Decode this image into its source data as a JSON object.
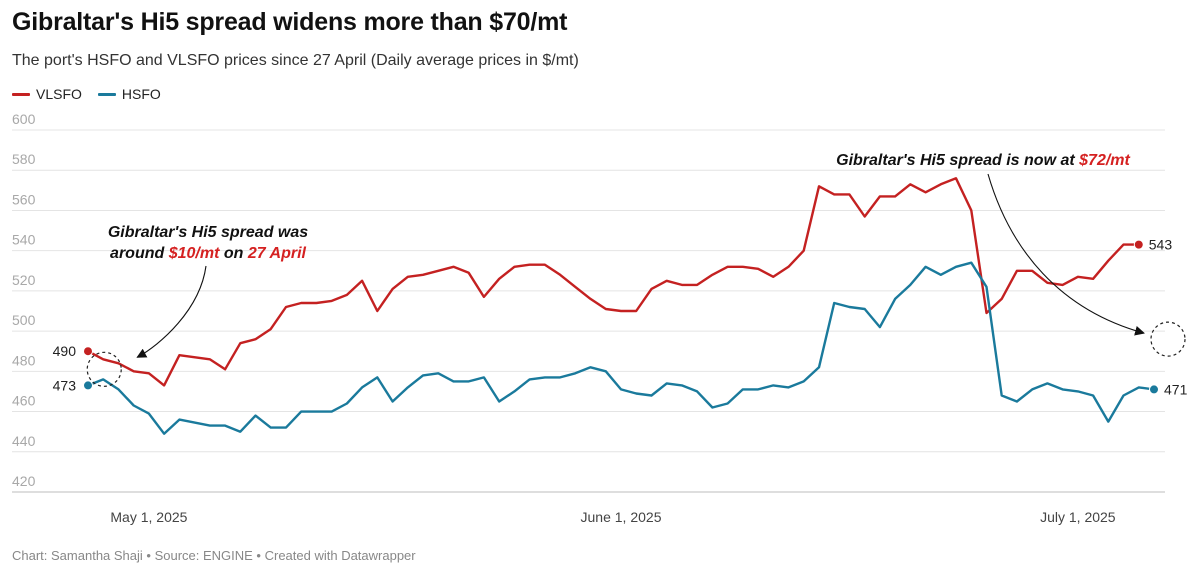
{
  "title": "Gibraltar's Hi5 spread widens more than $70/mt",
  "subtitle": "The port's HSFO and VLSFO prices since 27 April (Daily average prices in $/mt)",
  "footer": "Chart: Samantha Shaji • Source: ENGINE • Created with Datawrapper",
  "colors": {
    "vlsfo": "#c42121",
    "hsfo": "#1a7a9c",
    "grid": "#e4e4e4",
    "tick": "#a8a8a8",
    "highlight": "#d52121"
  },
  "chart_data": {
    "type": "line",
    "title": "Gibraltar's Hi5 spread widens more than $70/mt",
    "subtitle": "The port's HSFO and VLSFO prices since 27 April (Daily average prices in $/mt)",
    "ylim": [
      420,
      600
    ],
    "yticks": [
      "600",
      "580",
      "560",
      "540",
      "520",
      "500",
      "480",
      "460",
      "440",
      "420"
    ],
    "xticks": [
      {
        "label": "May 1, 2025",
        "date": "2025-05-01"
      },
      {
        "label": "June 1, 2025",
        "date": "2025-06-01"
      },
      {
        "label": "July 1, 2025",
        "date": "2025-07-01"
      }
    ],
    "legend_position": "top-left",
    "grid": true,
    "series": [
      {
        "name": "VLSFO",
        "points": [
          [
            "2025-04-27",
            490
          ],
          [
            "2025-04-28",
            486
          ],
          [
            "2025-04-29",
            484
          ],
          [
            "2025-04-30",
            480
          ],
          [
            "2025-05-01",
            479
          ],
          [
            "2025-05-02",
            473
          ],
          [
            "2025-05-03",
            488
          ],
          [
            "2025-05-05",
            486
          ],
          [
            "2025-05-06",
            481
          ],
          [
            "2025-05-07",
            494
          ],
          [
            "2025-05-08",
            496
          ],
          [
            "2025-05-09",
            501
          ],
          [
            "2025-05-10",
            512
          ],
          [
            "2025-05-11",
            514
          ],
          [
            "2025-05-12",
            514
          ],
          [
            "2025-05-13",
            515
          ],
          [
            "2025-05-14",
            518
          ],
          [
            "2025-05-15",
            525
          ],
          [
            "2025-05-16",
            510
          ],
          [
            "2025-05-17",
            521
          ],
          [
            "2025-05-18",
            527
          ],
          [
            "2025-05-19",
            528
          ],
          [
            "2025-05-20",
            530
          ],
          [
            "2025-05-21",
            532
          ],
          [
            "2025-05-22",
            529
          ],
          [
            "2025-05-23",
            517
          ],
          [
            "2025-05-24",
            526
          ],
          [
            "2025-05-25",
            532
          ],
          [
            "2025-05-26",
            533
          ],
          [
            "2025-05-27",
            533
          ],
          [
            "2025-05-28",
            528
          ],
          [
            "2025-05-29",
            522
          ],
          [
            "2025-05-30",
            516
          ],
          [
            "2025-05-31",
            511
          ],
          [
            "2025-06-01",
            510
          ],
          [
            "2025-06-02",
            510
          ],
          [
            "2025-06-03",
            521
          ],
          [
            "2025-06-04",
            525
          ],
          [
            "2025-06-05",
            523
          ],
          [
            "2025-06-06",
            523
          ],
          [
            "2025-06-07",
            528
          ],
          [
            "2025-06-08",
            532
          ],
          [
            "2025-06-09",
            532
          ],
          [
            "2025-06-10",
            531
          ],
          [
            "2025-06-11",
            527
          ],
          [
            "2025-06-12",
            532
          ],
          [
            "2025-06-13",
            540
          ],
          [
            "2025-06-14",
            572
          ],
          [
            "2025-06-15",
            568
          ],
          [
            "2025-06-16",
            568
          ],
          [
            "2025-06-17",
            557
          ],
          [
            "2025-06-18",
            567
          ],
          [
            "2025-06-19",
            567
          ],
          [
            "2025-06-20",
            573
          ],
          [
            "2025-06-21",
            569
          ],
          [
            "2025-06-22",
            573
          ],
          [
            "2025-06-23",
            576
          ],
          [
            "2025-06-24",
            560
          ],
          [
            "2025-06-25",
            509
          ],
          [
            "2025-06-26",
            516
          ],
          [
            "2025-06-27",
            530
          ],
          [
            "2025-06-28",
            530
          ],
          [
            "2025-06-29",
            524
          ],
          [
            "2025-06-30",
            523
          ],
          [
            "2025-07-01",
            527
          ],
          [
            "2025-07-02",
            526
          ],
          [
            "2025-07-03",
            535
          ],
          [
            "2025-07-04",
            543
          ],
          [
            "2025-07-05",
            543
          ]
        ]
      },
      {
        "name": "HSFO",
        "points": [
          [
            "2025-04-27",
            473
          ],
          [
            "2025-04-28",
            476
          ],
          [
            "2025-04-29",
            471
          ],
          [
            "2025-04-30",
            463
          ],
          [
            "2025-05-01",
            459
          ],
          [
            "2025-05-02",
            449
          ],
          [
            "2025-05-03",
            456
          ],
          [
            "2025-05-05",
            453
          ],
          [
            "2025-05-06",
            453
          ],
          [
            "2025-05-07",
            450
          ],
          [
            "2025-05-08",
            458
          ],
          [
            "2025-05-09",
            452
          ],
          [
            "2025-05-10",
            452
          ],
          [
            "2025-05-11",
            460
          ],
          [
            "2025-05-12",
            460
          ],
          [
            "2025-05-13",
            460
          ],
          [
            "2025-05-14",
            464
          ],
          [
            "2025-05-15",
            472
          ],
          [
            "2025-05-16",
            477
          ],
          [
            "2025-05-17",
            465
          ],
          [
            "2025-05-18",
            472
          ],
          [
            "2025-05-19",
            478
          ],
          [
            "2025-05-20",
            479
          ],
          [
            "2025-05-21",
            475
          ],
          [
            "2025-05-22",
            475
          ],
          [
            "2025-05-23",
            477
          ],
          [
            "2025-05-24",
            465
          ],
          [
            "2025-05-25",
            470
          ],
          [
            "2025-05-26",
            476
          ],
          [
            "2025-05-27",
            477
          ],
          [
            "2025-05-28",
            477
          ],
          [
            "2025-05-29",
            479
          ],
          [
            "2025-05-30",
            482
          ],
          [
            "2025-05-31",
            480
          ],
          [
            "2025-06-01",
            471
          ],
          [
            "2025-06-02",
            469
          ],
          [
            "2025-06-03",
            468
          ],
          [
            "2025-06-04",
            474
          ],
          [
            "2025-06-05",
            473
          ],
          [
            "2025-06-06",
            470
          ],
          [
            "2025-06-07",
            462
          ],
          [
            "2025-06-08",
            464
          ],
          [
            "2025-06-09",
            471
          ],
          [
            "2025-06-10",
            471
          ],
          [
            "2025-06-11",
            473
          ],
          [
            "2025-06-12",
            472
          ],
          [
            "2025-06-13",
            475
          ],
          [
            "2025-06-14",
            482
          ],
          [
            "2025-06-15",
            514
          ],
          [
            "2025-06-16",
            512
          ],
          [
            "2025-06-17",
            511
          ],
          [
            "2025-06-18",
            502
          ],
          [
            "2025-06-19",
            516
          ],
          [
            "2025-06-20",
            523
          ],
          [
            "2025-06-21",
            532
          ],
          [
            "2025-06-22",
            528
          ],
          [
            "2025-06-23",
            532
          ],
          [
            "2025-06-24",
            534
          ],
          [
            "2025-06-25",
            522
          ],
          [
            "2025-06-26",
            468
          ],
          [
            "2025-06-27",
            465
          ],
          [
            "2025-06-28",
            471
          ],
          [
            "2025-06-29",
            474
          ],
          [
            "2025-06-30",
            471
          ],
          [
            "2025-07-01",
            470
          ],
          [
            "2025-07-02",
            468
          ],
          [
            "2025-07-03",
            455
          ],
          [
            "2025-07-04",
            468
          ],
          [
            "2025-07-05",
            472
          ],
          [
            "2025-07-06",
            471
          ]
        ]
      }
    ],
    "end_labels": {
      "vlsfo_start": "490",
      "hsfo_start": "473",
      "vlsfo_end": "543",
      "hsfo_end": "471"
    },
    "annotations": [
      {
        "target_date": "2025-04-28",
        "target_value": 481,
        "line1": "Gibraltar's Hi5 spread was",
        "line2_parts": [
          {
            "text": "around ",
            "highlight": false
          },
          {
            "text": "$10/mt",
            "highlight": true
          },
          {
            "text": " on ",
            "highlight": false
          },
          {
            "text": "27 April",
            "highlight": true
          }
        ]
      },
      {
        "target_date": "2025-07-06",
        "target_value": 496,
        "line1_parts": [
          {
            "text": "Gibraltar's Hi5 spread is now at ",
            "highlight": false
          },
          {
            "text": "$72/mt",
            "highlight": true
          }
        ]
      }
    ]
  }
}
